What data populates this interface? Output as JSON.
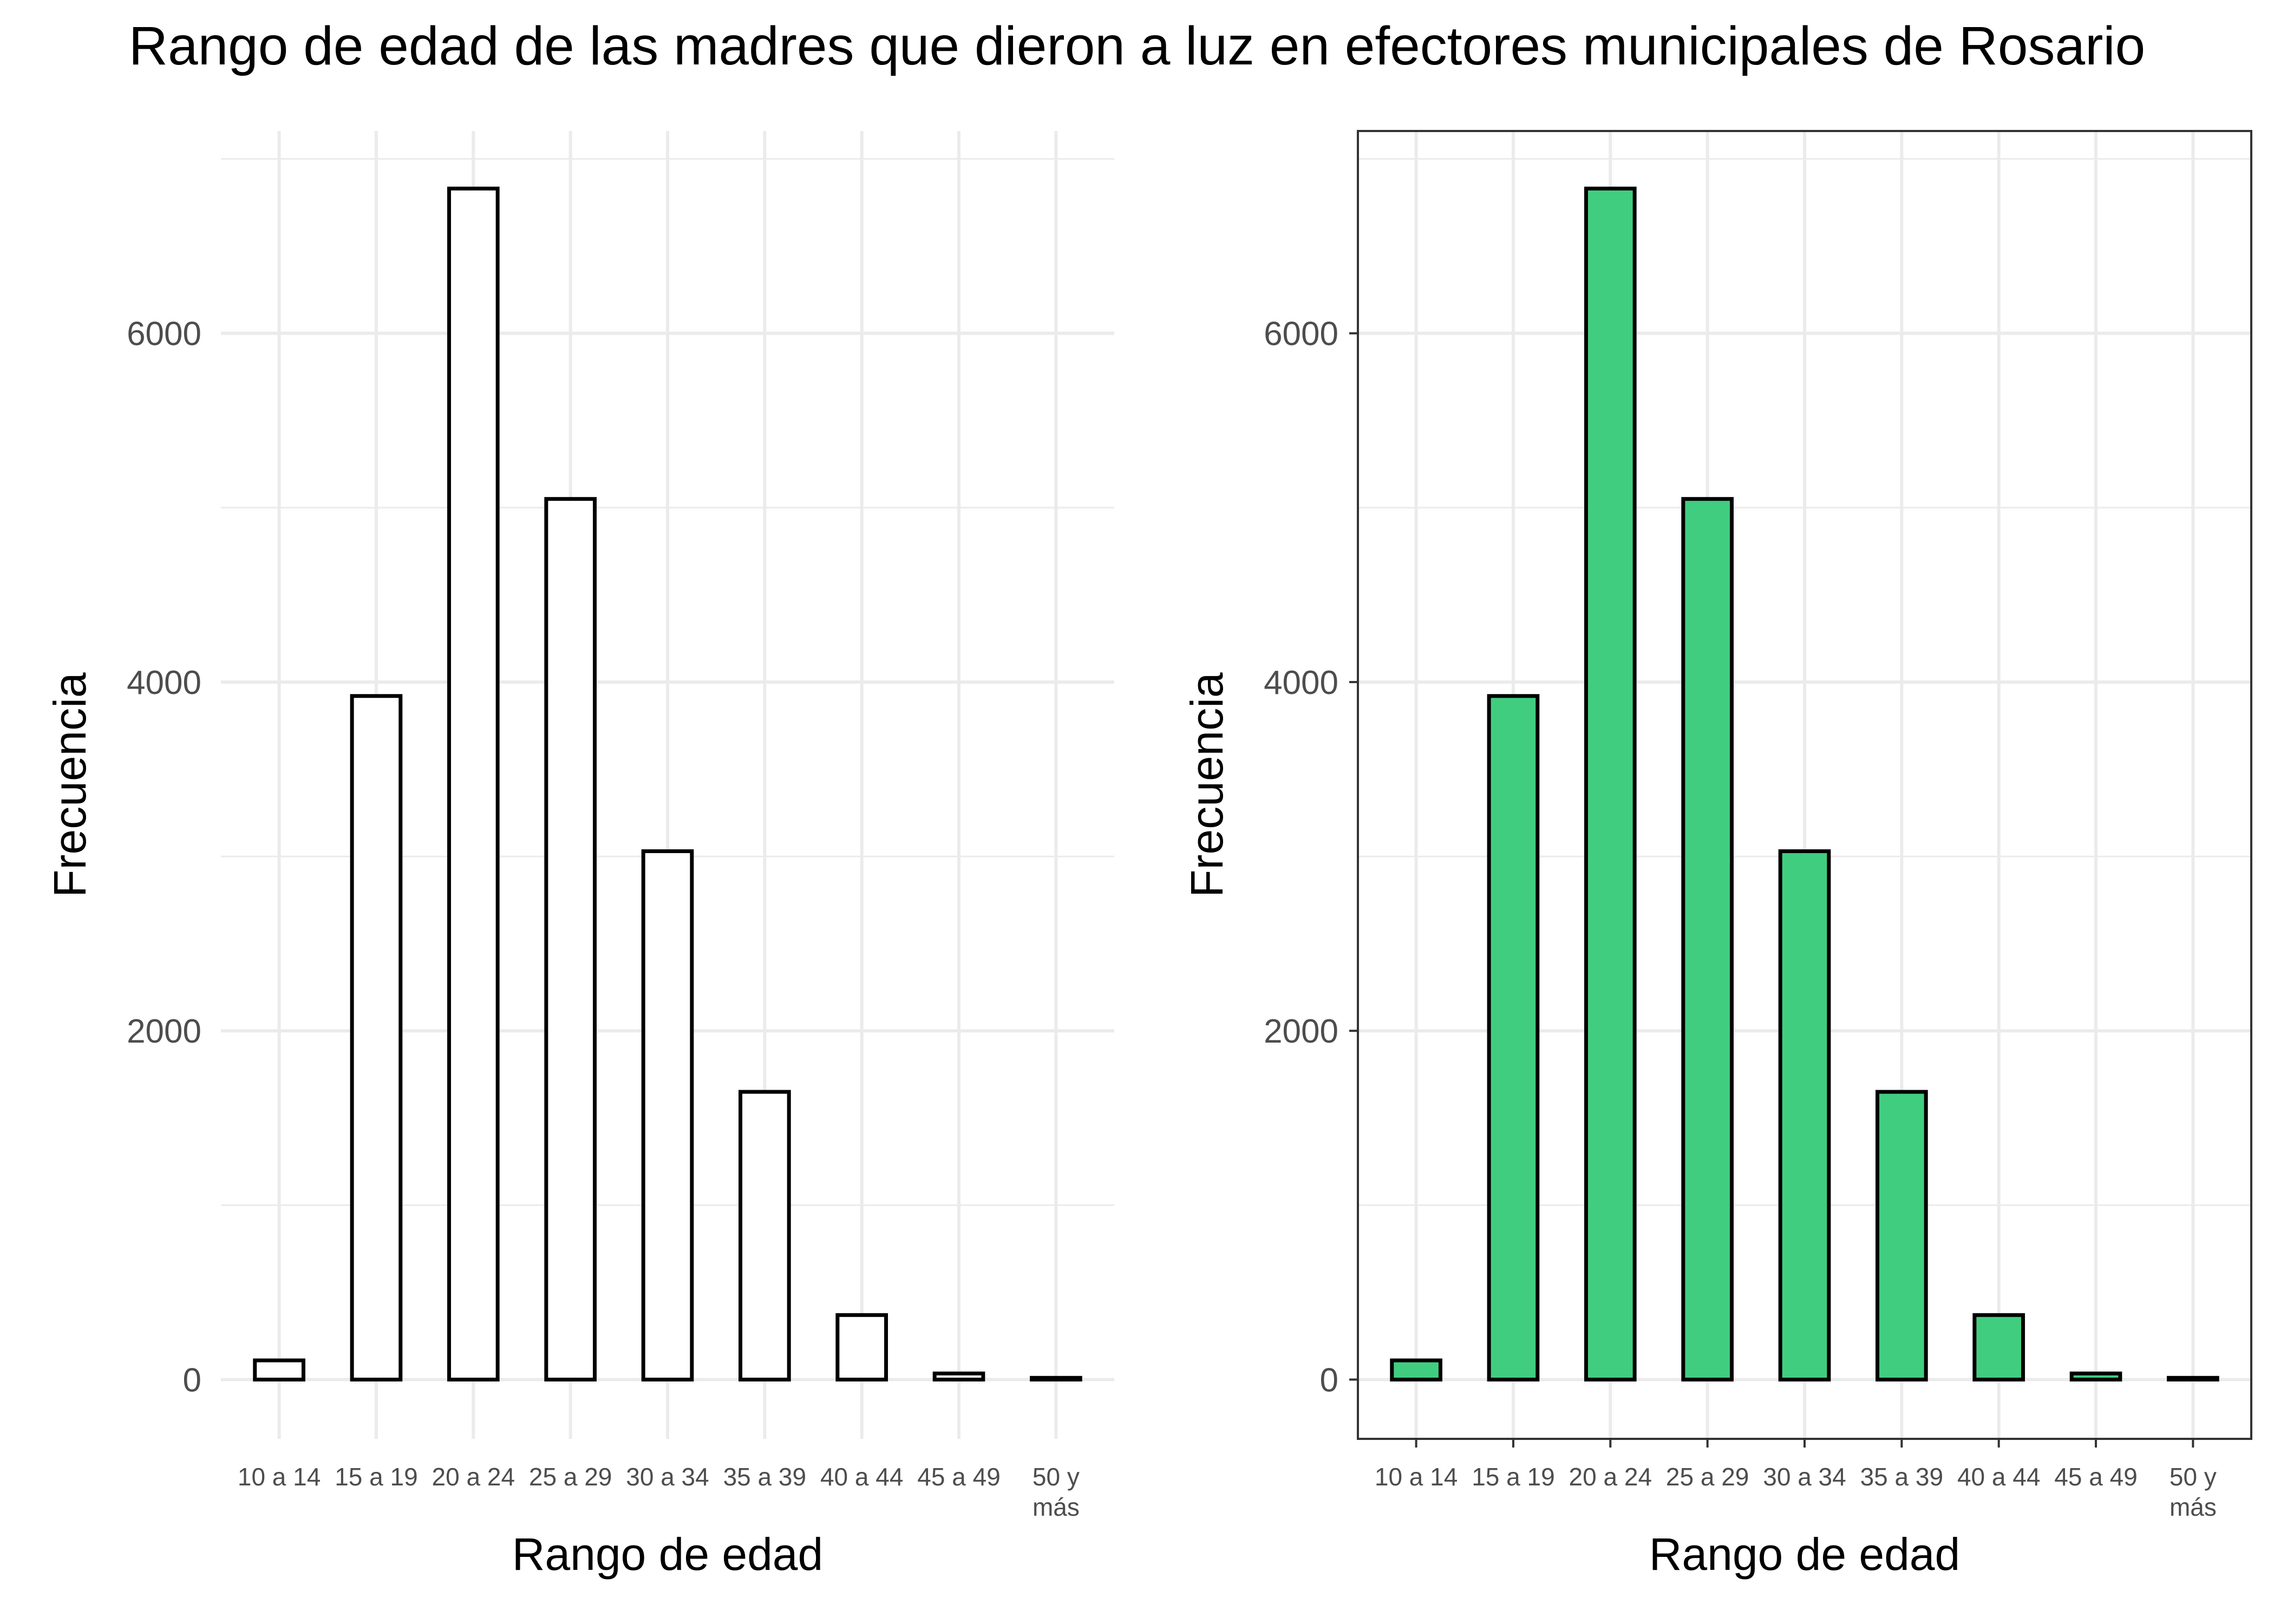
{
  "title": "Rango de edad de las madres que dieron a luz en efectores municipales de Rosario",
  "colors": {
    "fill_left": "#ffffff",
    "fill_right": "#41cd7f",
    "stroke": "#000000",
    "grid": "#ebebeb",
    "tick_text": "#4d4d4d"
  },
  "chart_data": [
    {
      "type": "bar",
      "categories": [
        "10 a 14",
        "15 a 19",
        "20 a 24",
        "25 a 29",
        "30 a 34",
        "35 a 39",
        "40 a 44",
        "45 a 49",
        "50 y más"
      ],
      "values": [
        110,
        3920,
        6830,
        5050,
        3030,
        1650,
        370,
        35,
        10
      ],
      "xlabel": "Rango de edad",
      "ylabel": "Frecuencia",
      "yticks": [
        0,
        2000,
        4000,
        6000
      ],
      "ylim": [
        -340,
        7160
      ],
      "grid": true,
      "panel_border": false,
      "bar_fill": "#ffffff"
    },
    {
      "type": "bar",
      "categories": [
        "10 a 14",
        "15 a 19",
        "20 a 24",
        "25 a 29",
        "30 a 34",
        "35 a 39",
        "40 a 44",
        "45 a 49",
        "50 y más"
      ],
      "values": [
        110,
        3920,
        6830,
        5050,
        3030,
        1650,
        370,
        35,
        10
      ],
      "xlabel": "Rango de edad",
      "ylabel": "Frecuencia",
      "yticks": [
        0,
        2000,
        4000,
        6000
      ],
      "ylim": [
        -340,
        7160
      ],
      "grid": true,
      "panel_border": true,
      "bar_fill": "#41cd7f"
    }
  ]
}
